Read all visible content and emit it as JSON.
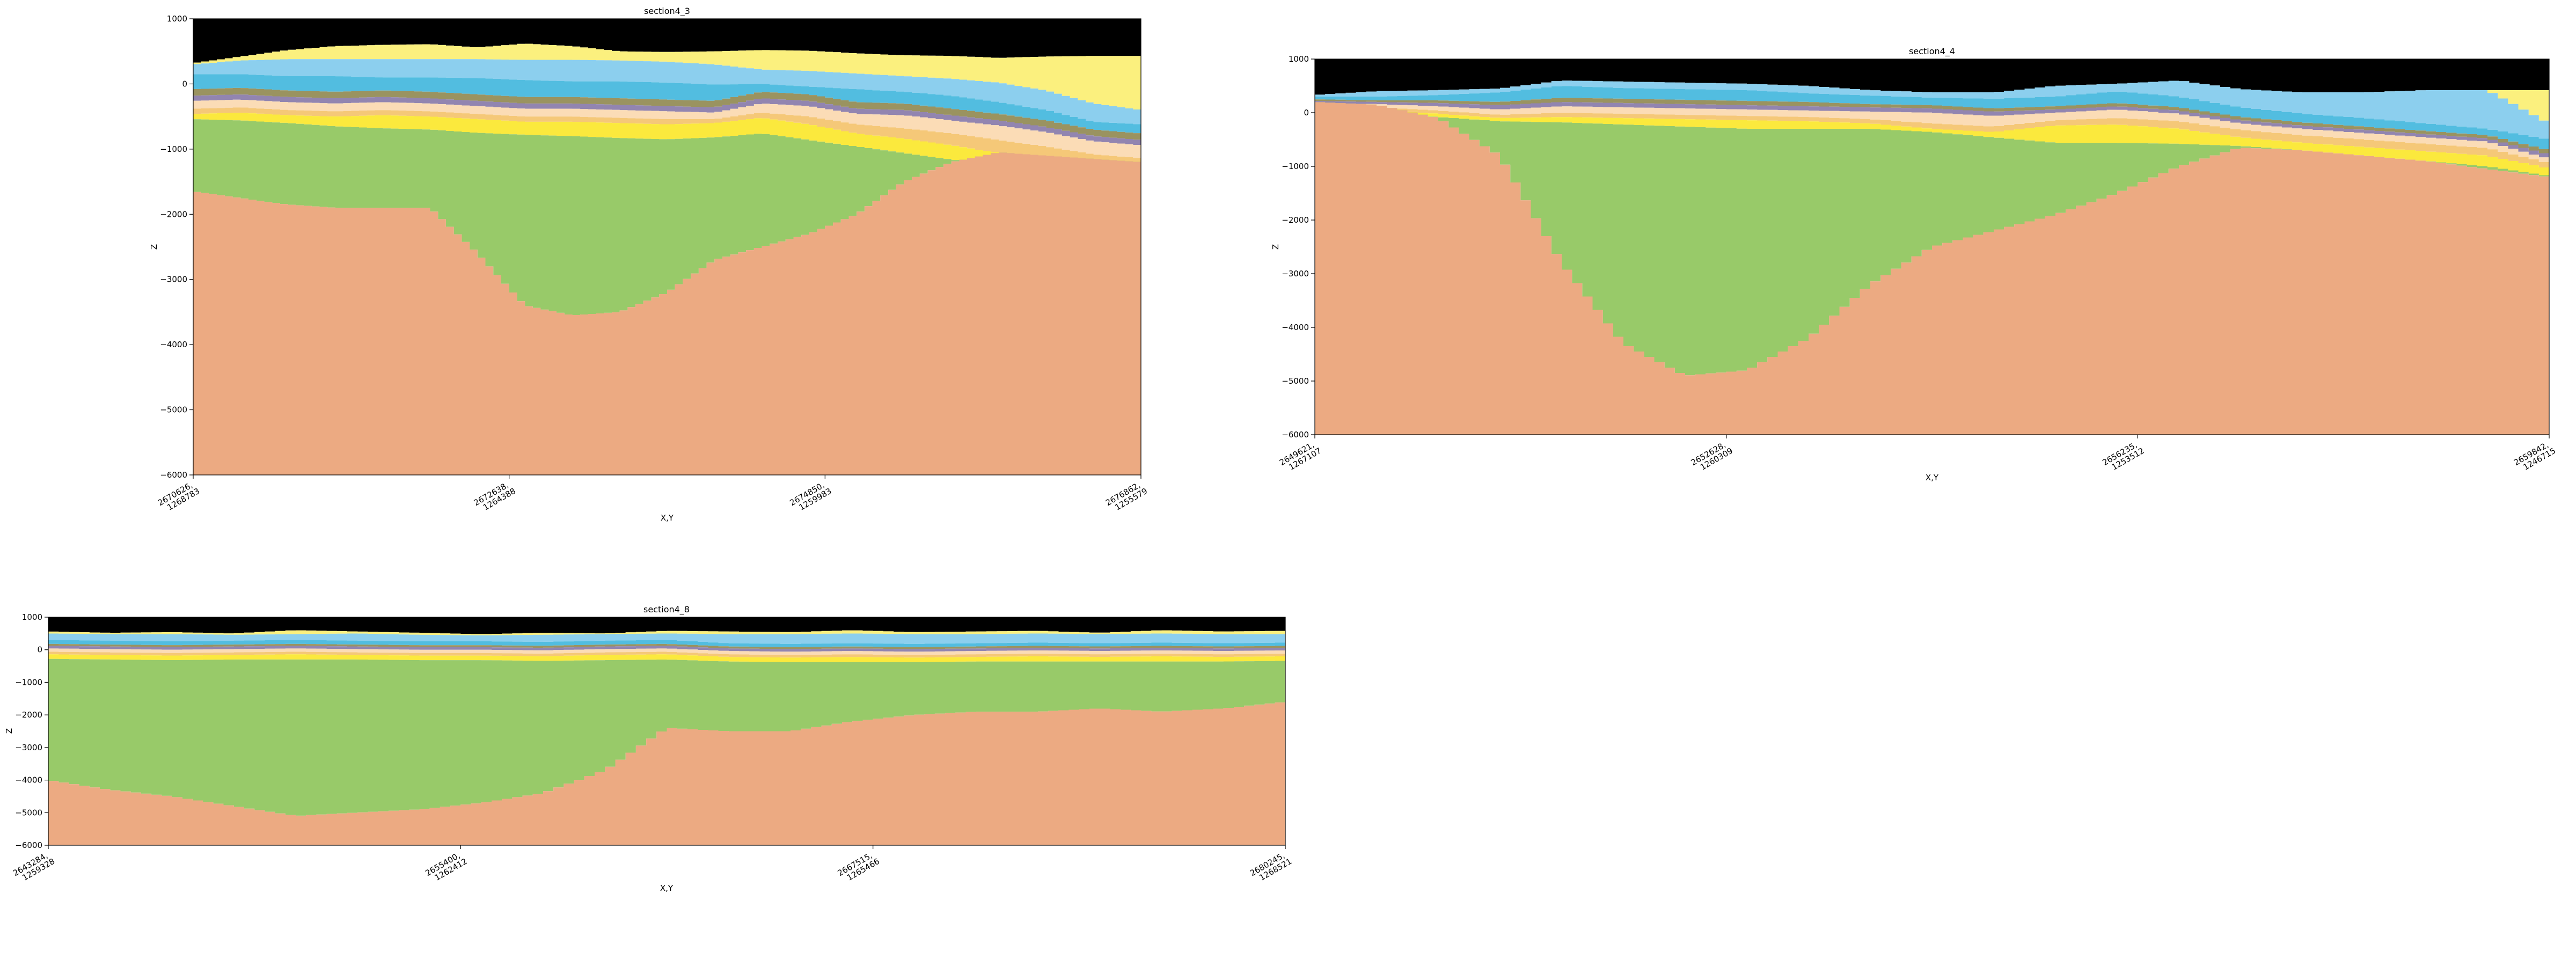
{
  "chart_data": [
    {
      "type": "area",
      "title": "section4_3",
      "xlabel": "X,Y",
      "ylabel": "Z",
      "ylim": [
        -6000,
        1000
      ],
      "yticks": [
        "1000",
        "0",
        "−1000",
        "−2000",
        "−3000",
        "−4000",
        "−5000",
        "−6000"
      ],
      "xticks": [
        {
          "line1": "2670626,",
          "line2": "1268783"
        },
        {
          "line1": "2672638,",
          "line2": "1264388"
        },
        {
          "line1": "2674850,",
          "line2": "1259983"
        },
        {
          "line1": "2676862,",
          "line2": "1255579"
        }
      ],
      "x": [
        0,
        0.05,
        0.1,
        0.15,
        0.2,
        0.25,
        0.3,
        0.35,
        0.4,
        0.45,
        0.5,
        0.55,
        0.6,
        0.65,
        0.7,
        0.75,
        0.8,
        0.85,
        0.9,
        0.95,
        1
      ],
      "surface": [
        320,
        420,
        520,
        580,
        600,
        610,
        560,
        620,
        580,
        500,
        490,
        500,
        520,
        510,
        470,
        440,
        430,
        400,
        420,
        430,
        430
      ],
      "layer_bases": [
        {
          "color": "#fbf07e",
          "values": [
            300,
            360,
            380,
            380,
            380,
            380,
            380,
            370,
            370,
            360,
            340,
            300,
            220,
            200,
            160,
            120,
            80,
            20,
            -100,
            -300,
            -400
          ]
        },
        {
          "color": "#8ccfee",
          "values": [
            150,
            150,
            120,
            120,
            100,
            100,
            90,
            60,
            40,
            40,
            20,
            -10,
            0,
            -40,
            -80,
            -120,
            -180,
            -280,
            -400,
            -580,
            -620
          ]
        },
        {
          "color": "#52bde0",
          "values": [
            -80,
            -60,
            -100,
            -120,
            -100,
            -120,
            -160,
            -200,
            -200,
            -220,
            -240,
            -260,
            -120,
            -160,
            -280,
            -300,
            -380,
            -460,
            -560,
            -700,
            -760
          ]
        },
        {
          "color": "#9a9360",
          "values": [
            -180,
            -160,
            -200,
            -220,
            -200,
            -220,
            -260,
            -300,
            -300,
            -320,
            -340,
            -360,
            -220,
            -260,
            -380,
            -400,
            -480,
            -560,
            -660,
            -800,
            -860
          ]
        },
        {
          "color": "#9285b0",
          "values": [
            -260,
            -240,
            -280,
            -300,
            -280,
            -300,
            -340,
            -380,
            -380,
            -400,
            -420,
            -440,
            -300,
            -340,
            -460,
            -480,
            -560,
            -640,
            -740,
            -880,
            -940
          ]
        },
        {
          "color": "#fbdcb6",
          "values": [
            -380,
            -360,
            -400,
            -420,
            -400,
            -420,
            -460,
            -500,
            -500,
            -520,
            -540,
            -540,
            -440,
            -500,
            -620,
            -680,
            -760,
            -860,
            -960,
            -1080,
            -1140
          ]
        },
        {
          "color": "#f5c878",
          "values": [
            -460,
            -440,
            -480,
            -500,
            -480,
            -500,
            -540,
            -580,
            -580,
            -600,
            -620,
            -600,
            -520,
            -620,
            -760,
            -840,
            -940,
            -1060,
            -1160,
            -1260,
            -1320
          ]
        },
        {
          "color": "#fbe93d",
          "values": [
            -540,
            -560,
            -600,
            -650,
            -680,
            -700,
            -750,
            -780,
            -800,
            -830,
            -850,
            -820,
            -760,
            -860,
            -960,
            -1060,
            -1160,
            -1260,
            -1340,
            -1400,
            -1420
          ]
        }
      ],
      "basement_top": [
        -1650,
        -1750,
        -1850,
        -1900,
        -1900,
        -1900,
        -2600,
        -3400,
        -3550,
        -3500,
        -3200,
        -2700,
        -2500,
        -2300,
        -2000,
        -1500,
        -1200,
        -1050,
        -1100,
        -1150,
        -1200
      ],
      "colors": {
        "sky": "#000000",
        "green": "#98ca69",
        "basement": "#ecaa82"
      }
    },
    {
      "type": "area",
      "title": "section4_4",
      "xlabel": "X,Y",
      "ylabel": "Z",
      "ylim": [
        -6000,
        1000
      ],
      "yticks": [
        "1000",
        "0",
        "−1000",
        "−2000",
        "−3000",
        "−4000",
        "−5000",
        "−6000"
      ],
      "xticks": [
        {
          "line1": "2649621,",
          "line2": "1267107"
        },
        {
          "line1": "2652628,",
          "line2": "1260309"
        },
        {
          "line1": "2656235,",
          "line2": "1253512"
        },
        {
          "line1": "2659842,",
          "line2": "1246715"
        }
      ],
      "x": [
        0,
        0.05,
        0.1,
        0.15,
        0.2,
        0.25,
        0.3,
        0.35,
        0.4,
        0.45,
        0.5,
        0.55,
        0.6,
        0.65,
        0.7,
        0.75,
        0.8,
        0.85,
        0.9,
        0.95,
        1
      ],
      "surface": [
        330,
        400,
        420,
        450,
        600,
        580,
        560,
        540,
        500,
        420,
        380,
        380,
        500,
        540,
        600,
        440,
        380,
        380,
        420,
        420,
        420
      ],
      "layer_bases": [
        {
          "color": "#fbf07e",
          "values": [
            330,
            400,
            420,
            450,
            600,
            580,
            560,
            540,
            500,
            420,
            380,
            380,
            500,
            540,
            600,
            440,
            380,
            380,
            420,
            420,
            -200
          ]
        },
        {
          "color": "#8ccfee",
          "values": [
            300,
            300,
            330,
            380,
            500,
            460,
            440,
            420,
            360,
            320,
            280,
            260,
            300,
            400,
            300,
            100,
            -20,
            -100,
            -200,
            -300,
            -500
          ]
        },
        {
          "color": "#52bde0",
          "values": [
            250,
            230,
            230,
            200,
            280,
            260,
            240,
            220,
            200,
            160,
            140,
            80,
            120,
            180,
            100,
            -80,
            -180,
            -260,
            -340,
            -420,
            -700
          ]
        },
        {
          "color": "#9a9360",
          "values": [
            220,
            200,
            180,
            140,
            200,
            180,
            160,
            140,
            120,
            100,
            80,
            20,
            60,
            120,
            40,
            -140,
            -240,
            -320,
            -400,
            -480,
            -780
          ]
        },
        {
          "color": "#9285b0",
          "values": [
            180,
            160,
            120,
            60,
            120,
            100,
            80,
            60,
            40,
            20,
            0,
            -60,
            0,
            60,
            -20,
            -200,
            -300,
            -380,
            -460,
            -540,
            -860
          ]
        },
        {
          "color": "#fbdcb6",
          "values": [
            120,
            100,
            40,
            -40,
            0,
            -20,
            -40,
            -60,
            -80,
            -120,
            -200,
            -260,
            -140,
            -100,
            -160,
            -320,
            -420,
            -500,
            -580,
            -660,
            -940
          ]
        },
        {
          "color": "#f5c878",
          "values": [
            80,
            60,
            -20,
            -100,
            -80,
            -100,
            -120,
            -140,
            -160,
            -200,
            -300,
            -360,
            -240,
            -220,
            -300,
            -460,
            -560,
            -640,
            -720,
            -800,
            -1040
          ]
        },
        {
          "color": "#fbe93d",
          "values": [
            60,
            20,
            -80,
            -160,
            -180,
            -220,
            -260,
            -300,
            -300,
            -300,
            -360,
            -460,
            -560,
            -560,
            -580,
            -620,
            -700,
            -800,
            -900,
            -1000,
            -1180
          ]
        }
      ],
      "basement_top": [
        200,
        150,
        -100,
        -800,
        -2800,
        -4300,
        -4900,
        -4800,
        -4200,
        -3200,
        -2500,
        -2200,
        -1900,
        -1500,
        -1000,
        -650,
        -700,
        -800,
        -900,
        -1050,
        -1200
      ],
      "colors": {
        "sky": "#000000",
        "green": "#98ca69",
        "basement": "#ecaa82"
      }
    },
    {
      "type": "area",
      "title": "section4_8",
      "xlabel": "X,Y",
      "ylabel": "Z",
      "ylim": [
        -6000,
        1000
      ],
      "yticks": [
        "1000",
        "0",
        "−1000",
        "−2000",
        "−3000",
        "−4000",
        "−5000",
        "−6000"
      ],
      "xticks": [
        {
          "line1": "2643284,",
          "line2": "1259328"
        },
        {
          "line1": "2655400,",
          "line2": "1262412"
        },
        {
          "line1": "2667515,",
          "line2": "1265466"
        },
        {
          "line1": "2680245,",
          "line2": "1268521"
        }
      ],
      "x": [
        0,
        0.05,
        0.1,
        0.15,
        0.2,
        0.25,
        0.3,
        0.35,
        0.4,
        0.45,
        0.5,
        0.55,
        0.6,
        0.65,
        0.7,
        0.75,
        0.8,
        0.85,
        0.9,
        0.95,
        1
      ],
      "surface": [
        560,
        520,
        540,
        500,
        600,
        560,
        520,
        480,
        520,
        500,
        580,
        560,
        540,
        600,
        540,
        560,
        580,
        520,
        600,
        560,
        580
      ],
      "layer_bases": [
        {
          "color": "#fbf07e",
          "values": [
            500,
            480,
            480,
            460,
            480,
            500,
            460,
            440,
            460,
            480,
            500,
            480,
            480,
            500,
            480,
            480,
            500,
            480,
            500,
            480,
            480
          ]
        },
        {
          "color": "#8ccfee",
          "values": [
            300,
            280,
            260,
            280,
            300,
            280,
            260,
            260,
            240,
            280,
            300,
            200,
            180,
            200,
            180,
            200,
            220,
            200,
            220,
            200,
            220
          ]
        },
        {
          "color": "#52bde0",
          "values": [
            180,
            160,
            140,
            160,
            180,
            160,
            140,
            140,
            120,
            160,
            180,
            100,
            80,
            100,
            80,
            100,
            120,
            100,
            120,
            100,
            120
          ]
        },
        {
          "color": "#9a9360",
          "values": [
            120,
            100,
            80,
            100,
            120,
            100,
            80,
            80,
            60,
            100,
            120,
            40,
            20,
            40,
            20,
            40,
            60,
            40,
            60,
            40,
            60
          ]
        },
        {
          "color": "#9285b0",
          "values": [
            40,
            20,
            0,
            20,
            40,
            20,
            0,
            0,
            -20,
            20,
            40,
            -40,
            -60,
            -40,
            -60,
            -40,
            -20,
            -40,
            -20,
            -40,
            -20
          ]
        },
        {
          "color": "#fbdcb6",
          "values": [
            -60,
            -80,
            -100,
            -80,
            -60,
            -80,
            -100,
            -100,
            -120,
            -80,
            -60,
            -140,
            -160,
            -140,
            -160,
            -140,
            -120,
            -140,
            -120,
            -140,
            -120
          ]
        },
        {
          "color": "#f5c878",
          "values": [
            -140,
            -160,
            -180,
            -160,
            -140,
            -160,
            -180,
            -180,
            -200,
            -160,
            -140,
            -220,
            -240,
            -220,
            -240,
            -220,
            -200,
            -220,
            -200,
            -220,
            -200
          ]
        },
        {
          "color": "#fbe93d",
          "values": [
            -280,
            -300,
            -320,
            -300,
            -300,
            -300,
            -320,
            -320,
            -340,
            -320,
            -300,
            -360,
            -380,
            -380,
            -380,
            -360,
            -360,
            -360,
            -360,
            -360,
            -340
          ]
        }
      ],
      "basement_top": [
        -4000,
        -4300,
        -4500,
        -4800,
        -5100,
        -5000,
        -4900,
        -4700,
        -4400,
        -3700,
        -2400,
        -2500,
        -2500,
        -2200,
        -2000,
        -1900,
        -1900,
        -1800,
        -1900,
        -1800,
        -1600
      ],
      "colors": {
        "sky": "#000000",
        "green": "#98ca69",
        "basement": "#ecaa82"
      }
    }
  ]
}
